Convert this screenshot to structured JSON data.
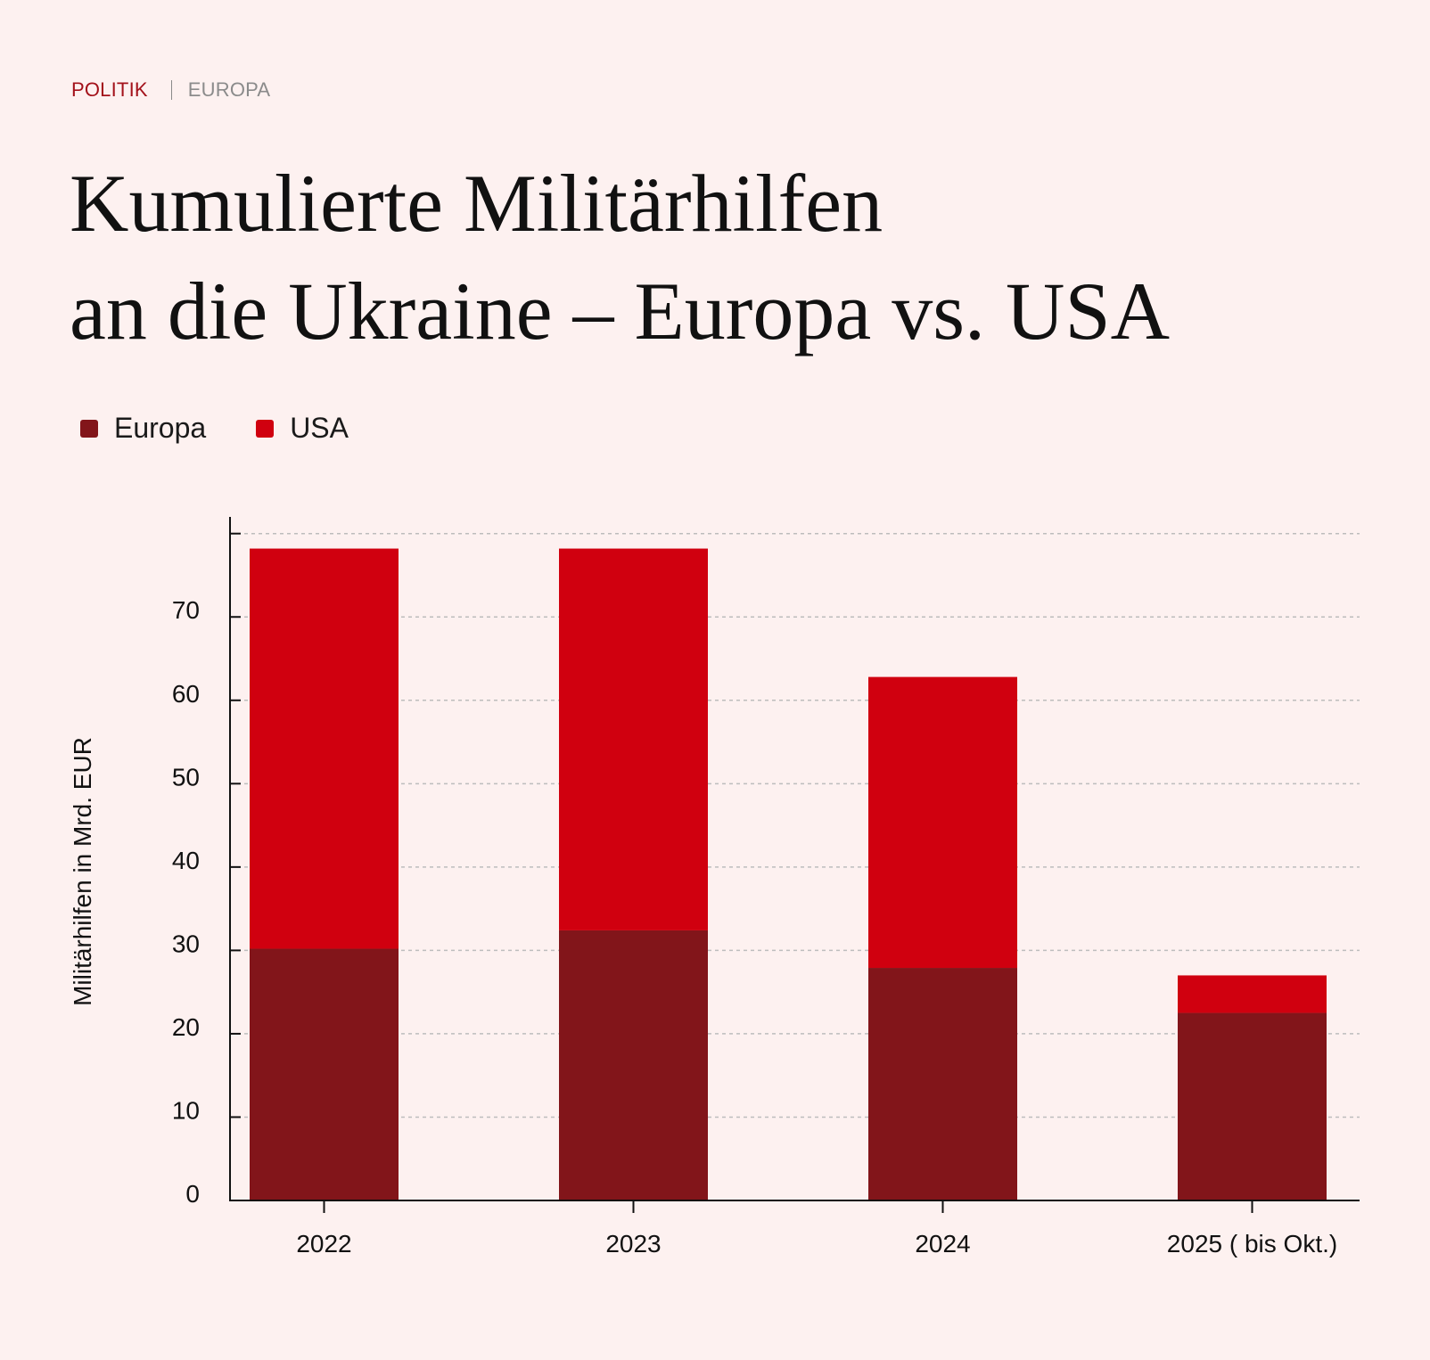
{
  "breadcrumb": {
    "section": "POLITIK",
    "subsection": "EUROPA"
  },
  "title": {
    "line1": "Kumulierte Militärhilfen",
    "line2": "an die Ukraine – Europa vs. USA"
  },
  "colors": {
    "background": "#fdf1f0",
    "europa": "#82151a",
    "usa": "#d0000f",
    "grid": "#bdbdbd",
    "axis": "#111111",
    "breadcrumb_primary": "#a3111a",
    "breadcrumb_secondary": "#8b8b8b"
  },
  "legend": [
    {
      "label": "Europa",
      "color": "#82151a"
    },
    {
      "label": "USA",
      "color": "#d0000f"
    }
  ],
  "chart_data": {
    "type": "bar",
    "stacked": true,
    "title": "Kumulierte Militärhilfen an die Ukraine – Europa vs. USA",
    "xlabel": "",
    "ylabel": "Militärhilfen in Mrd. EUR",
    "categories": [
      "2022",
      "2023",
      "2024",
      "2025 ( bis Okt.)"
    ],
    "series": [
      {
        "name": "Europa",
        "values": [
          30.2,
          32.4,
          27.9,
          22.5
        ]
      },
      {
        "name": "USA",
        "values": [
          48.0,
          45.8,
          34.9,
          4.5
        ]
      }
    ],
    "ylim": [
      0,
      82
    ],
    "yticks": [
      0,
      10,
      20,
      30,
      40,
      50,
      60,
      70
    ],
    "grid_lines": [
      10,
      20,
      30,
      40,
      50,
      60,
      70,
      80
    ],
    "grid": true,
    "legend_position": "top-left"
  }
}
